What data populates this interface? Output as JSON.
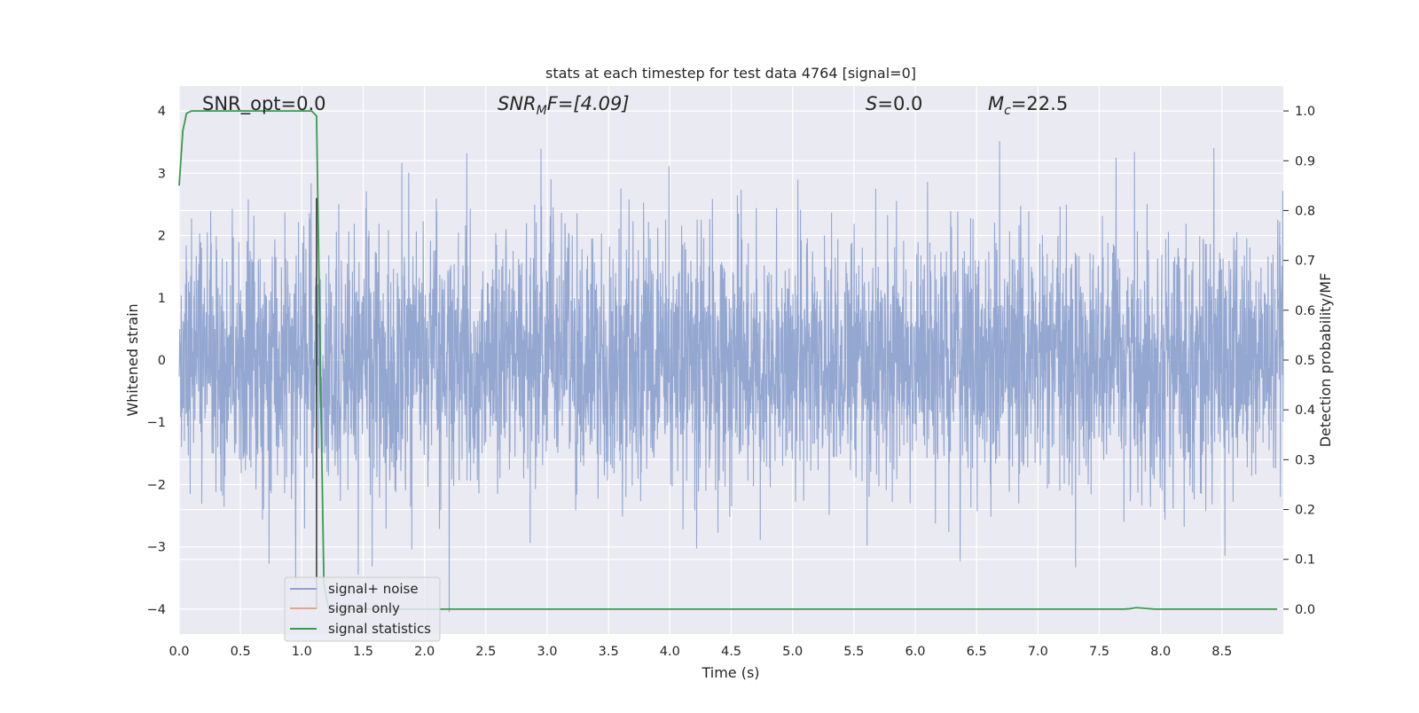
{
  "chart_data": {
    "type": "line",
    "title": "stats at each timestep for test data 4764 [signal=0]",
    "xlabel": "Time (s)",
    "ylabel": "Whitened strain",
    "y2label": "Detection probability/MF",
    "xlim": [
      0.0,
      9.0
    ],
    "ylim": [
      -4.4,
      4.4
    ],
    "y2lim": [
      -0.05,
      1.05
    ],
    "xticks": [
      "0.0",
      "0.5",
      "1.0",
      "1.5",
      "2.0",
      "2.5",
      "3.0",
      "3.5",
      "4.0",
      "4.5",
      "5.0",
      "5.5",
      "6.0",
      "6.5",
      "7.0",
      "7.5",
      "8.0",
      "8.5"
    ],
    "yticks": [
      "4",
      "3",
      "2",
      "1",
      "0",
      "−1",
      "−2",
      "−3",
      "−4"
    ],
    "y2ticks": [
      "1.0",
      "0.9",
      "0.8",
      "0.7",
      "0.6",
      "0.5",
      "0.4",
      "0.3",
      "0.2",
      "0.1",
      "0.0"
    ],
    "grid": true,
    "legend_position": "lower-left",
    "annotations": {
      "snr_opt": "SNR_opt=0.0",
      "snr_mf_main": "SNR",
      "snr_mf_sub": "M",
      "snr_mf_rest": "F=[4.09]",
      "s_label": "S",
      "s_rest": "=0.0",
      "mc_label": "M",
      "mc_sub": "c",
      "mc_rest": "=22.5"
    },
    "vertical_marker_x": 1.12,
    "series": [
      {
        "name": "signal+ noise",
        "color": "#8fa3cf",
        "description_kind": "whitened noise, approx. gaussian, envelope about ±2.5 with peaks to ±4",
        "amplitude_sigma": 1.0,
        "x_range": [
          0.0,
          9.0
        ]
      },
      {
        "name": "signal only",
        "color": "#e8a488",
        "x": [],
        "y": []
      },
      {
        "name": "signal statistics",
        "color": "#3a9a4e",
        "axis": "right",
        "x": [
          0.0,
          0.03,
          0.06,
          0.1,
          0.2,
          0.5,
          0.8,
          1.0,
          1.08,
          1.12,
          1.15,
          1.18,
          1.22,
          1.3,
          2.0,
          5.0,
          7.7,
          7.75,
          7.8,
          7.85,
          7.95,
          8.5,
          8.95
        ],
        "y": [
          0.85,
          0.96,
          0.995,
          1.0,
          1.0,
          1.0,
          1.0,
          1.0,
          1.0,
          0.99,
          0.5,
          0.05,
          0.0,
          0.0,
          0.0,
          0.0,
          0.0,
          0.001,
          0.003,
          0.002,
          0.0,
          0.0,
          0.0
        ]
      }
    ]
  }
}
